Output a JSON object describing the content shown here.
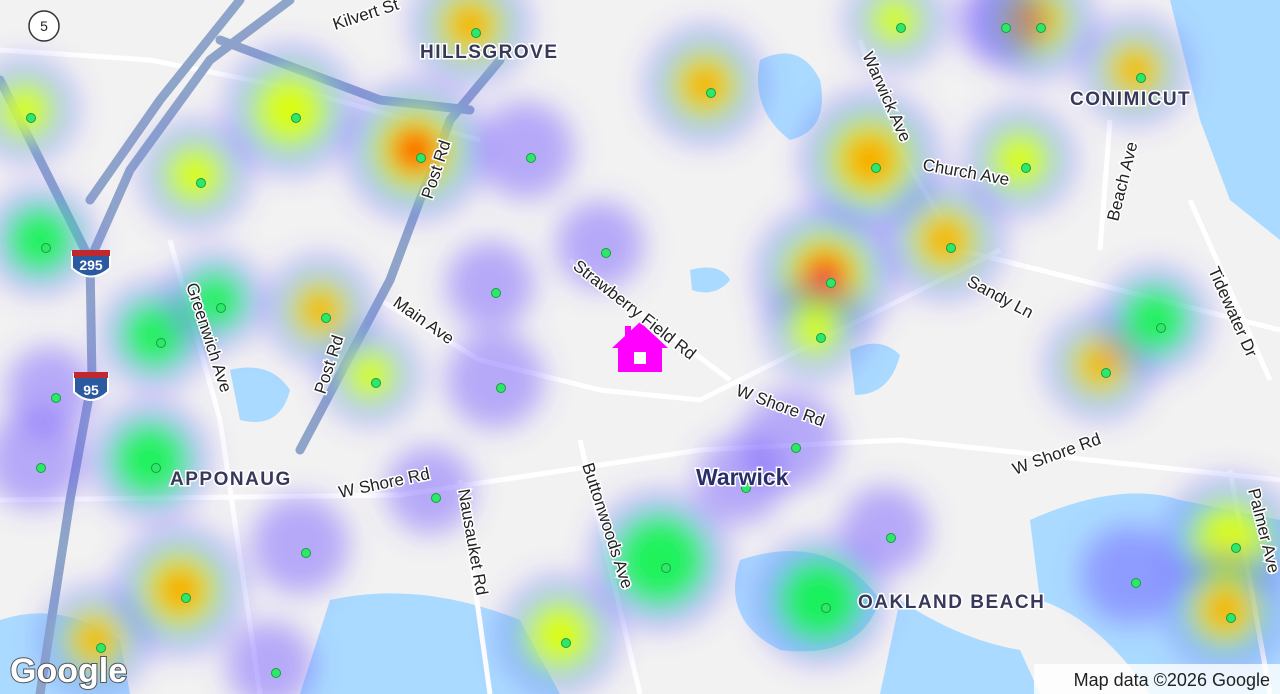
{
  "map": {
    "places": [
      "HILLSGROVE",
      "CONIMICUT",
      "APPONAUG",
      "Warwick",
      "OAKLAND BEACH"
    ],
    "roads": [
      "Kilvert St",
      "Post Rd",
      "Post Rd",
      "Warwick Ave",
      "Church Ave",
      "Beach Ave",
      "Tidewater Dr",
      "Sandy Ln",
      "Strawberry Field Rd",
      "Main Ave",
      "Greenwich Ave",
      "W Shore Rd",
      "W Shore Rd",
      "W Shore Rd",
      "Nausauket Rd",
      "Buttonwoods Ave",
      "Palmer Ave"
    ],
    "shields": [
      "295",
      "95",
      "5"
    ],
    "attribution": "Map data ©2026 Google",
    "logo": "Google"
  }
}
